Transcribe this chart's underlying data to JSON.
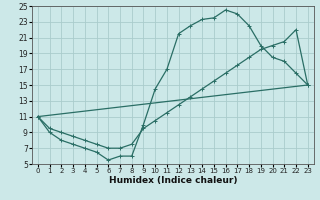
{
  "xlabel": "Humidex (Indice chaleur)",
  "bg_color": "#cce8e8",
  "line_color": "#2a6e65",
  "grid_color": "#aacccc",
  "xlim": [
    -0.5,
    23.5
  ],
  "ylim": [
    5,
    25
  ],
  "xticks": [
    0,
    1,
    2,
    3,
    4,
    5,
    6,
    7,
    8,
    9,
    10,
    11,
    12,
    13,
    14,
    15,
    16,
    17,
    18,
    19,
    20,
    21,
    22,
    23
  ],
  "yticks": [
    5,
    7,
    9,
    11,
    13,
    15,
    17,
    19,
    21,
    23,
    25
  ],
  "curve1_x": [
    0,
    1,
    2,
    3,
    4,
    5,
    6,
    7,
    8,
    9,
    10,
    11,
    12,
    13,
    14,
    15,
    16,
    17,
    18,
    19,
    20,
    21,
    22,
    23
  ],
  "curve1_y": [
    11,
    9,
    8,
    7.5,
    7,
    6.5,
    5.5,
    6,
    6,
    10,
    14.5,
    17,
    21.5,
    22.5,
    23.3,
    23.5,
    24.5,
    24,
    22.5,
    20,
    18.5,
    18,
    16.5,
    15
  ],
  "curve2_x": [
    0,
    1,
    2,
    3,
    4,
    5,
    6,
    7,
    8,
    9,
    10,
    11,
    12,
    13,
    14,
    15,
    16,
    17,
    18,
    19,
    20,
    21,
    22,
    23
  ],
  "curve2_y": [
    11,
    9.5,
    9,
    8.5,
    8,
    7.5,
    7.0,
    7.0,
    7.5,
    9.5,
    10.5,
    11.5,
    12.5,
    13.5,
    14.5,
    15.5,
    16.5,
    17.5,
    18.5,
    19.5,
    20.0,
    20.5,
    22.0,
    15
  ],
  "curve3_x": [
    0,
    23
  ],
  "curve3_y": [
    11,
    15
  ]
}
